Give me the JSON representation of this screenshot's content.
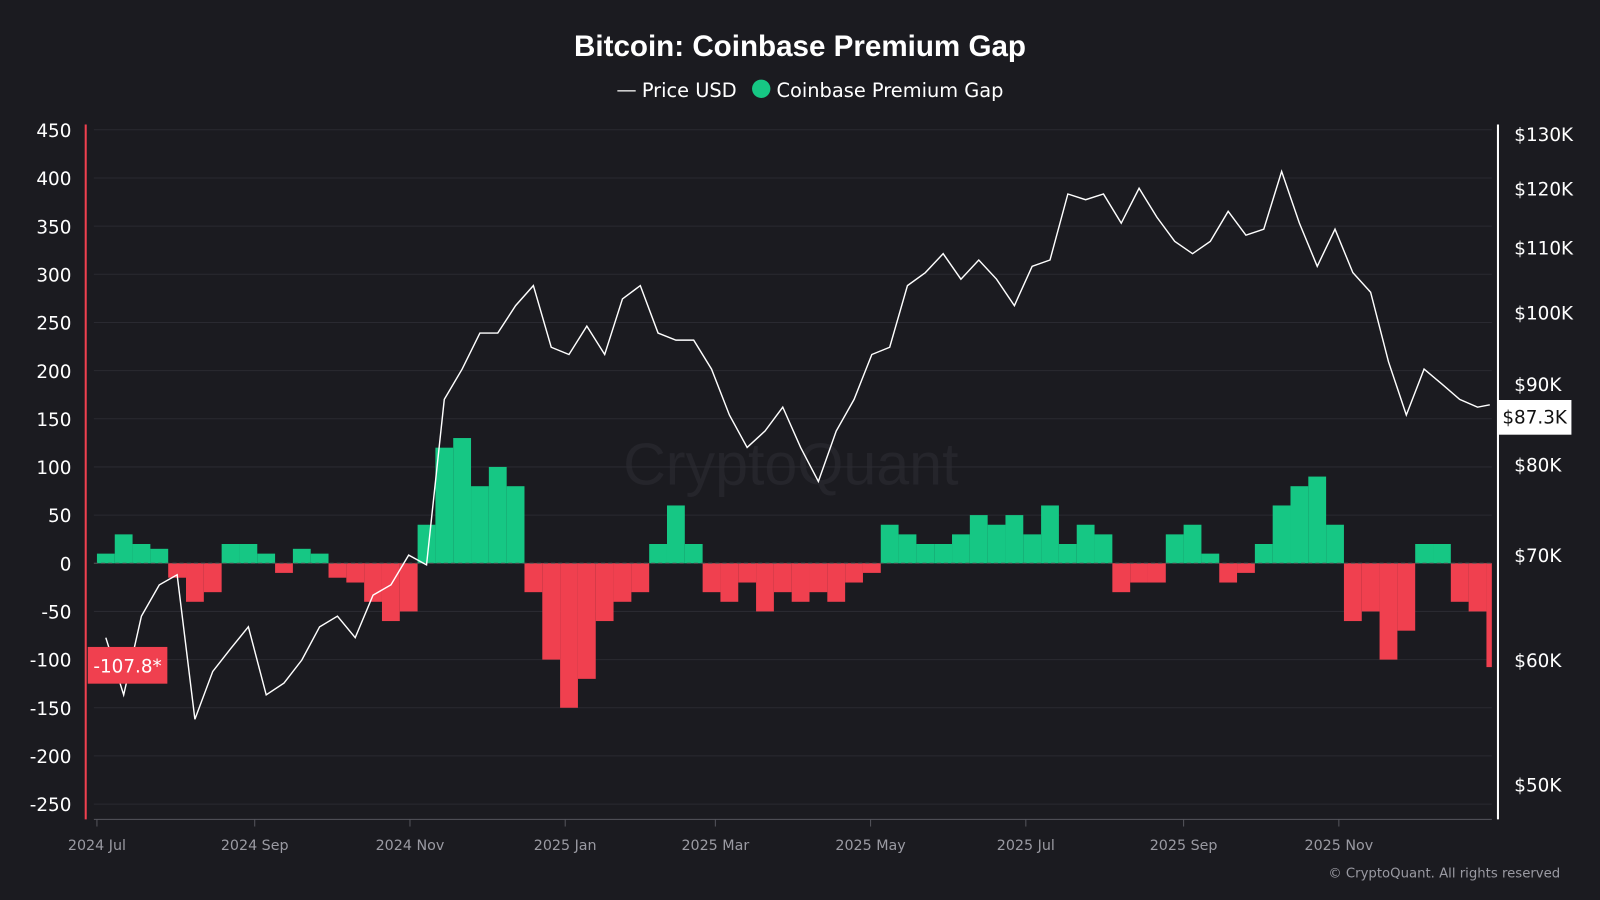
{
  "chart_data": {
    "type": "bar+line",
    "title": "Bitcoin: Coinbase Premium Gap",
    "legend": {
      "placement": "top-center",
      "items": [
        {
          "label": "Price USD",
          "color": "#ffffff",
          "marker": "line"
        },
        {
          "label": "Coinbase Premium Gap",
          "color": "#16c784",
          "marker": "dot"
        }
      ]
    },
    "colors": {
      "positive": "#16c784",
      "negative": "#f0404f",
      "price": "#ffffff",
      "background": "#1b1b20"
    },
    "left_axis": {
      "ylim": [
        -265,
        458
      ],
      "ticks": [
        450,
        400,
        350,
        300,
        250,
        200,
        150,
        100,
        50,
        0,
        -50,
        -100,
        -150,
        -200,
        -250
      ],
      "current_label": "-107.8*"
    },
    "right_axis": {
      "scale": "log",
      "ylim": [
        47000,
        133000
      ],
      "ticks": [
        130000,
        120000,
        110000,
        100000,
        90000,
        80000,
        70000,
        60000,
        50000
      ],
      "tick_labels": [
        "$130K",
        "$120K",
        "$110K",
        "$100K",
        "$90K",
        "$80K",
        "$70K",
        "$60K",
        "$50K"
      ],
      "current_label": "$87.3K"
    },
    "x_axis": {
      "ticks": [
        "2024-07-01",
        "2024-09-01",
        "2024-11-01",
        "2025-01-01",
        "2025-03-01",
        "2025-05-01",
        "2025-07-01",
        "2025-09-01",
        "2025-11-01"
      ],
      "tick_labels": [
        "2024 Jul",
        "2024 Sep",
        "2024 Nov",
        "2025 Jan",
        "2025 Mar",
        "2025 May",
        "2025 Jul",
        "2025 Sep",
        "2025 Nov"
      ]
    },
    "grid": true,
    "x": [
      "2024-07-01",
      "2024-07-08",
      "2024-07-15",
      "2024-07-22",
      "2024-07-29",
      "2024-08-05",
      "2024-08-12",
      "2024-08-19",
      "2024-08-26",
      "2024-09-02",
      "2024-09-09",
      "2024-09-16",
      "2024-09-23",
      "2024-09-30",
      "2024-10-07",
      "2024-10-14",
      "2024-10-21",
      "2024-10-28",
      "2024-11-04",
      "2024-11-11",
      "2024-11-18",
      "2024-11-25",
      "2024-12-02",
      "2024-12-09",
      "2024-12-16",
      "2024-12-23",
      "2024-12-30",
      "2025-01-06",
      "2025-01-13",
      "2025-01-20",
      "2025-01-27",
      "2025-02-03",
      "2025-02-10",
      "2025-02-17",
      "2025-02-24",
      "2025-03-03",
      "2025-03-10",
      "2025-03-17",
      "2025-03-24",
      "2025-03-31",
      "2025-04-07",
      "2025-04-14",
      "2025-04-21",
      "2025-04-28",
      "2025-05-05",
      "2025-05-12",
      "2025-05-19",
      "2025-05-26",
      "2025-06-02",
      "2025-06-09",
      "2025-06-16",
      "2025-06-23",
      "2025-06-30",
      "2025-07-07",
      "2025-07-14",
      "2025-07-21",
      "2025-07-28",
      "2025-08-04",
      "2025-08-11",
      "2025-08-18",
      "2025-08-25",
      "2025-09-01",
      "2025-09-08",
      "2025-09-15",
      "2025-09-22",
      "2025-09-29",
      "2025-10-06",
      "2025-10-13",
      "2025-10-20",
      "2025-10-27",
      "2025-11-03",
      "2025-11-10",
      "2025-11-17",
      "2025-11-24",
      "2025-12-01",
      "2025-12-08",
      "2025-12-15",
      "2025-12-22",
      "2025-12-29"
    ],
    "series": [
      {
        "name": "Price USD",
        "type": "line",
        "axis": "right",
        "values": [
          62000,
          57000,
          64000,
          67000,
          68000,
          55000,
          59000,
          61000,
          63000,
          57000,
          58000,
          60000,
          63000,
          64000,
          62000,
          66000,
          67000,
          70000,
          69000,
          88000,
          92000,
          97000,
          97000,
          101000,
          104000,
          95000,
          94000,
          98000,
          94000,
          102000,
          104000,
          97000,
          96000,
          96000,
          92000,
          86000,
          82000,
          84000,
          87000,
          82000,
          78000,
          84000,
          88000,
          94000,
          95000,
          104000,
          106000,
          109000,
          105000,
          108000,
          105000,
          101000,
          107000,
          108000,
          119000,
          118000,
          119000,
          114000,
          120000,
          115000,
          111000,
          109000,
          111000,
          116000,
          112000,
          113000,
          123000,
          114000,
          107000,
          113000,
          106000,
          103000,
          93000,
          86000,
          92000,
          90000,
          88000,
          87000,
          87300
        ]
      },
      {
        "name": "Coinbase Premium Gap",
        "type": "bar",
        "axis": "left",
        "values": [
          10,
          30,
          20,
          15,
          -15,
          -40,
          -30,
          20,
          20,
          10,
          -10,
          15,
          10,
          -15,
          -20,
          -40,
          -60,
          -50,
          40,
          120,
          130,
          80,
          100,
          80,
          -30,
          -100,
          -150,
          -120,
          -60,
          -40,
          -30,
          20,
          60,
          20,
          -30,
          -40,
          -20,
          -50,
          -30,
          -40,
          -30,
          -40,
          -20,
          -10,
          40,
          30,
          20,
          20,
          30,
          50,
          40,
          50,
          30,
          60,
          20,
          40,
          30,
          -30,
          -20,
          -20,
          30,
          40,
          10,
          -20,
          -10,
          20,
          60,
          80,
          90,
          40,
          -60,
          -50,
          -100,
          -70,
          20,
          20,
          -40,
          -50,
          -107.8
        ]
      }
    ]
  },
  "watermark": "CryptoQuant",
  "copyright": "© CryptoQuant. All rights reserved"
}
